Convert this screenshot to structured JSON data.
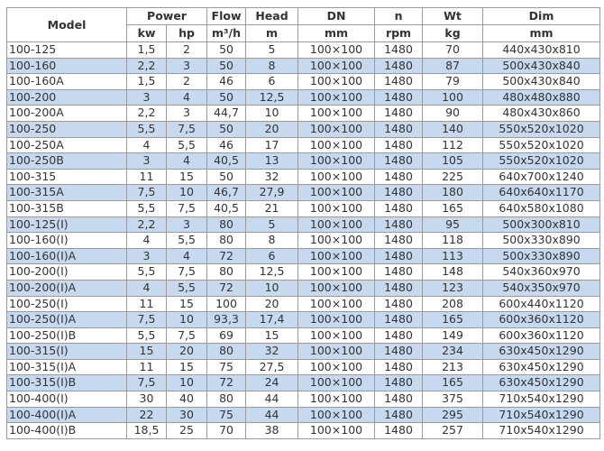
{
  "header": {
    "model": "Model",
    "power": "Power",
    "flow": "Flow",
    "head": "Head",
    "dn": "DN",
    "n": "n",
    "wt": "Wt",
    "dim": "Dim",
    "units": {
      "kw": "kw",
      "hp": "hp",
      "flow": "m³/h",
      "head": "m",
      "dn": "mm",
      "n": "rpm",
      "wt": "kg",
      "dim": "mm"
    }
  },
  "colors": {
    "stripe": "#c6d9ef",
    "grid": "#9a9a9a",
    "text": "#333333"
  },
  "rows": [
    [
      "100-125",
      "1,5",
      "2",
      "50",
      "5",
      "100×100",
      "1480",
      "70",
      "440x430x810"
    ],
    [
      "100-160",
      "2,2",
      "3",
      "50",
      "8",
      "100×100",
      "1480",
      "87",
      "500x430x840"
    ],
    [
      "100-160A",
      "1,5",
      "2",
      "46",
      "6",
      "100×100",
      "1480",
      "79",
      "500x430x840"
    ],
    [
      "100-200",
      "3",
      "4",
      "50",
      "12,5",
      "100×100",
      "1480",
      "100",
      "480x480x880"
    ],
    [
      "100-200A",
      "2,2",
      "3",
      "44,7",
      "10",
      "100×100",
      "1480",
      "90",
      "480x430x860"
    ],
    [
      "100-250",
      "5,5",
      "7,5",
      "50",
      "20",
      "100×100",
      "1480",
      "140",
      "550x520x1020"
    ],
    [
      "100-250A",
      "4",
      "5,5",
      "46",
      "17",
      "100×100",
      "1480",
      "112",
      "550x520x1020"
    ],
    [
      "100-250B",
      "3",
      "4",
      "40,5",
      "13",
      "100×100",
      "1480",
      "105",
      "550x520x1020"
    ],
    [
      "100-315",
      "11",
      "15",
      "50",
      "32",
      "100×100",
      "1480",
      "225",
      "640x700x1240"
    ],
    [
      "100-315A",
      "7,5",
      "10",
      "46,7",
      "27,9",
      "100×100",
      "1480",
      "180",
      "640x640x1170"
    ],
    [
      "100-315B",
      "5,5",
      "7,5",
      "40,5",
      "21",
      "100×100",
      "1480",
      "165",
      "640x580x1080"
    ],
    [
      "100-125(I)",
      "2,2",
      "3",
      "80",
      "5",
      "100×100",
      "1480",
      "95",
      "500x300x810"
    ],
    [
      "100-160(I)",
      "4",
      "5,5",
      "80",
      "8",
      "100×100",
      "1480",
      "118",
      "500x330x890"
    ],
    [
      "100-160(I)A",
      "3",
      "4",
      "72",
      "6",
      "100×100",
      "1480",
      "113",
      "500x330x890"
    ],
    [
      "100-200(I)",
      "5,5",
      "7,5",
      "80",
      "12,5",
      "100×100",
      "1480",
      "148",
      "540x360x970"
    ],
    [
      "100-200(I)A",
      "4",
      "5,5",
      "72",
      "10",
      "100×100",
      "1480",
      "123",
      "540x350x970"
    ],
    [
      "100-250(I)",
      "11",
      "15",
      "100",
      "20",
      "100×100",
      "1480",
      "208",
      "600x440x1120"
    ],
    [
      "100-250(I)A",
      "7,5",
      "10",
      "93,3",
      "17,4",
      "100×100",
      "1480",
      "165",
      "600x360x1120"
    ],
    [
      "100-250(I)B",
      "5,5",
      "7,5",
      "69",
      "15",
      "100×100",
      "1480",
      "149",
      "600x360x1120"
    ],
    [
      "100-315(I)",
      "15",
      "20",
      "80",
      "32",
      "100×100",
      "1480",
      "234",
      "630x450x1290"
    ],
    [
      "100-315(I)A",
      "11",
      "15",
      "75",
      "27,5",
      "100×100",
      "1480",
      "213",
      "630x450x1290"
    ],
    [
      "100-315(I)B",
      "7,5",
      "10",
      "72",
      "24",
      "100×100",
      "1480",
      "165",
      "630x450x1290"
    ],
    [
      "100-400(I)",
      "30",
      "40",
      "80",
      "44",
      "100×100",
      "1480",
      "375",
      "710x540x1290"
    ],
    [
      "100-400(I)A",
      "22",
      "30",
      "75",
      "44",
      "100×100",
      "1480",
      "295",
      "710x540x1290"
    ],
    [
      "100-400(I)B",
      "18,5",
      "25",
      "70",
      "38",
      "100×100",
      "1480",
      "257",
      "710x540x1290"
    ]
  ]
}
